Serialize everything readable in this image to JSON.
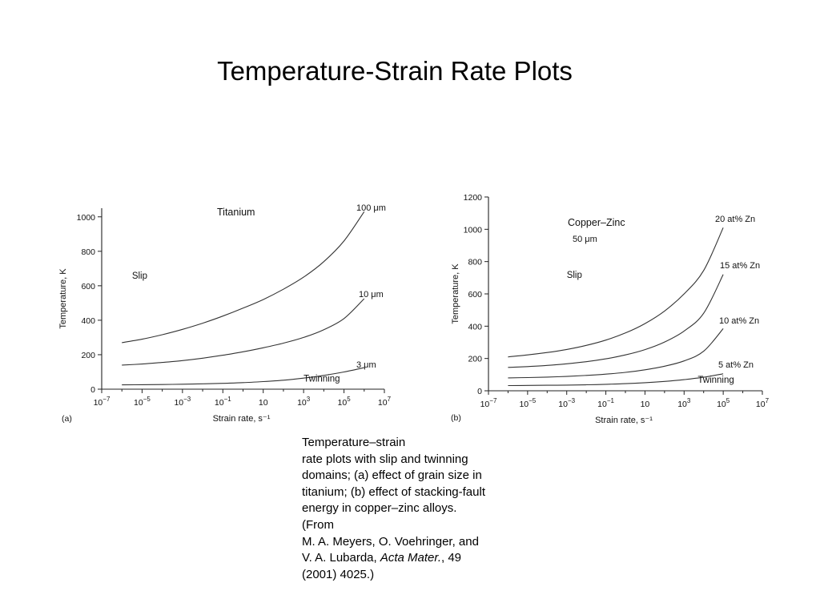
{
  "slide": {
    "title": "Temperature-Strain Rate Plots"
  },
  "caption": {
    "line1": "Temperature–strain",
    "line2": "rate plots with slip and twinning",
    "line3": "domains; (a) effect of grain size in",
    "line4": "titanium; (b) effect of stacking-fault",
    "line5": "energy in copper–zinc alloys.",
    "line6": "(From",
    "line7": "M. A. Meyers, O. Voehringer, and",
    "line8a": "V. A. Lubarda, ",
    "line8b": "Acta Mater.",
    "line8c": ", 49",
    "line9": "(2001) 4025.)"
  },
  "chart_data": [
    {
      "type": "line",
      "panel_label": "(a)",
      "title": "Titanium",
      "xlabel": "Strain rate, s⁻¹",
      "ylabel": "Temperature, K",
      "x_scale": "log",
      "xlim_exp": [
        -7,
        7
      ],
      "ylim": [
        0,
        1050
      ],
      "yticks": [
        0,
        200,
        400,
        600,
        800,
        1000
      ],
      "yticklabels": [
        "0",
        "200",
        "400",
        "600",
        "800",
        "1000"
      ],
      "xticks_exp": [
        -7,
        -5,
        -3,
        -1,
        1,
        3,
        5,
        7
      ],
      "xticklabels": [
        {
          "base": "10",
          "sup": "−7"
        },
        {
          "base": "10",
          "sup": "−5"
        },
        {
          "base": "10",
          "sup": "−3"
        },
        {
          "base": "10",
          "sup": "−1"
        },
        {
          "base": "10",
          "sup": ""
        },
        {
          "base": "10",
          "sup": "3"
        },
        {
          "base": "10",
          "sup": "5"
        },
        {
          "base": "10",
          "sup": "7"
        }
      ],
      "domain_labels": [
        {
          "text": "Slip",
          "at": [
            -5.5,
            640
          ]
        },
        {
          "text": "Twinning",
          "at": [
            3.0,
            45
          ]
        }
      ],
      "series": [
        {
          "name": "100 μm",
          "points": [
            [
              -6,
              270
            ],
            [
              -5,
              290
            ],
            [
              -4,
              316
            ],
            [
              -3,
              347
            ],
            [
              -2,
              383
            ],
            [
              -1,
              424
            ],
            [
              0,
              470
            ],
            [
              1,
              520
            ],
            [
              2,
              580
            ],
            [
              3,
              650
            ],
            [
              4,
              740
            ],
            [
              5,
              860
            ],
            [
              6,
              1030
            ]
          ]
        },
        {
          "name": "10 μm",
          "points": [
            [
              -6,
              140
            ],
            [
              -5,
              146
            ],
            [
              -4,
              155
            ],
            [
              -3,
              166
            ],
            [
              -2,
              180
            ],
            [
              -1,
              197
            ],
            [
              0,
              217
            ],
            [
              1,
              240
            ],
            [
              2,
              267
            ],
            [
              3,
              300
            ],
            [
              4,
              345
            ],
            [
              5,
              410
            ],
            [
              6,
              525
            ]
          ]
        },
        {
          "name": "3 μm",
          "points": [
            [
              -6,
              25
            ],
            [
              -5,
              26
            ],
            [
              -4,
              27
            ],
            [
              -3,
              29
            ],
            [
              -2,
              31
            ],
            [
              -1,
              34
            ],
            [
              0,
              38
            ],
            [
              1,
              44
            ],
            [
              2,
              52
            ],
            [
              3,
              64
            ],
            [
              4,
              80
            ],
            [
              5,
              100
            ],
            [
              6,
              125
            ]
          ]
        }
      ]
    },
    {
      "type": "line",
      "panel_label": "(b)",
      "title": "Copper–Zinc",
      "subtitle": "50 μm",
      "xlabel": "Strain rate, s⁻¹",
      "ylabel": "Temperature, K",
      "x_scale": "log",
      "xlim_exp": [
        -7,
        7
      ],
      "ylim": [
        0,
        1200
      ],
      "yticks": [
        0,
        200,
        400,
        600,
        800,
        1000,
        1200
      ],
      "yticklabels": [
        "0",
        "200",
        "400",
        "600",
        "800",
        "1000",
        "1200"
      ],
      "xticks_exp": [
        -7,
        -5,
        -3,
        -1,
        1,
        3,
        5,
        7
      ],
      "xticklabels": [
        {
          "base": "10",
          "sup": "−7"
        },
        {
          "base": "10",
          "sup": "−5"
        },
        {
          "base": "10",
          "sup": "−3"
        },
        {
          "base": "10",
          "sup": "−1"
        },
        {
          "base": "10",
          "sup": ""
        },
        {
          "base": "10",
          "sup": "3"
        },
        {
          "base": "10",
          "sup": "5"
        },
        {
          "base": "10",
          "sup": "7"
        }
      ],
      "domain_labels": [
        {
          "text": "Slip",
          "at": [
            -3.0,
            700
          ]
        },
        {
          "text": "Twinning",
          "at": [
            3.7,
            50
          ]
        }
      ],
      "series": [
        {
          "name": "20 at% Zn",
          "points": [
            [
              -6,
              210
            ],
            [
              -5,
              222
            ],
            [
              -4,
              237
            ],
            [
              -3,
              256
            ],
            [
              -2,
              281
            ],
            [
              -1,
              314
            ],
            [
              0,
              358
            ],
            [
              1,
              416
            ],
            [
              2,
              494
            ],
            [
              3,
              600
            ],
            [
              4,
              745
            ],
            [
              5,
              1010
            ]
          ]
        },
        {
          "name": "15 at% Zn",
          "points": [
            [
              -6,
              145
            ],
            [
              -5,
              150
            ],
            [
              -4,
              157
            ],
            [
              -3,
              167
            ],
            [
              -2,
              180
            ],
            [
              -1,
              198
            ],
            [
              0,
              222
            ],
            [
              1,
              255
            ],
            [
              2,
              302
            ],
            [
              3,
              370
            ],
            [
              4,
              480
            ],
            [
              5,
              720
            ]
          ]
        },
        {
          "name": "10 at% Zn",
          "points": [
            [
              -6,
              80
            ],
            [
              -5,
              82
            ],
            [
              -4,
              85
            ],
            [
              -3,
              89
            ],
            [
              -2,
              95
            ],
            [
              -1,
              103
            ],
            [
              0,
              114
            ],
            [
              1,
              130
            ],
            [
              2,
              152
            ],
            [
              3,
              185
            ],
            [
              4,
              245
            ],
            [
              5,
              385
            ]
          ]
        },
        {
          "name": "5 at% Zn",
          "points": [
            [
              -6,
              32
            ],
            [
              -5,
              33
            ],
            [
              -4,
              34
            ],
            [
              -3,
              35
            ],
            [
              -2,
              37
            ],
            [
              -1,
              40
            ],
            [
              0,
              44
            ],
            [
              1,
              50
            ],
            [
              2,
              58
            ],
            [
              3,
              69
            ],
            [
              4,
              84
            ],
            [
              5,
              105
            ]
          ]
        }
      ]
    }
  ]
}
